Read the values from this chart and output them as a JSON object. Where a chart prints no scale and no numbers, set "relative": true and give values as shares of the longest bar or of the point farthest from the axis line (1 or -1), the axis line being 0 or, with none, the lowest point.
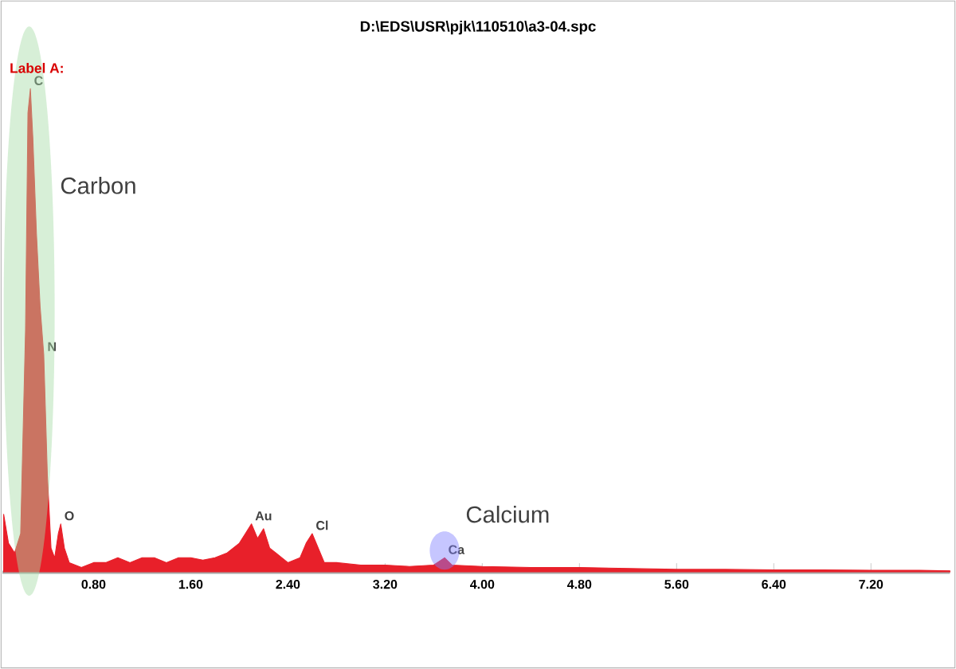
{
  "chart_data": {
    "type": "area",
    "title": "D:\\EDS\\USR\\pjk\\110510\\a3-04.spc",
    "relative": true,
    "xlim": [
      0.05,
      7.85
    ],
    "xticks": [
      {
        "value": 0.8,
        "label": "0.80"
      },
      {
        "value": 1.6,
        "label": "1.60"
      },
      {
        "value": 2.4,
        "label": "2.40"
      },
      {
        "value": 3.2,
        "label": "3.20"
      },
      {
        "value": 4.0,
        "label": "4.00"
      },
      {
        "value": 4.8,
        "label": "4.80"
      },
      {
        "value": 5.6,
        "label": "5.60"
      },
      {
        "value": 6.4,
        "label": "6.40"
      },
      {
        "value": 7.2,
        "label": "7.20"
      }
    ],
    "series": [
      {
        "color": "#e8202a",
        "x": [
          0.06,
          0.1,
          0.15,
          0.2,
          0.24,
          0.26,
          0.28,
          0.3,
          0.33,
          0.36,
          0.39,
          0.42,
          0.45,
          0.48,
          0.51,
          0.53,
          0.56,
          0.6,
          0.7,
          0.8,
          0.9,
          1.0,
          1.1,
          1.2,
          1.3,
          1.4,
          1.5,
          1.6,
          1.7,
          1.8,
          1.9,
          2.0,
          2.05,
          2.1,
          2.15,
          2.2,
          2.25,
          2.3,
          2.4,
          2.5,
          2.55,
          2.6,
          2.65,
          2.7,
          2.8,
          3.0,
          3.2,
          3.4,
          3.6,
          3.69,
          3.75,
          4.0,
          4.4,
          4.8,
          5.2,
          5.6,
          6.0,
          6.4,
          6.8,
          7.2,
          7.6,
          7.85
        ],
        "values": [
          0.12,
          0.06,
          0.04,
          0.08,
          0.5,
          0.95,
          1.0,
          0.9,
          0.7,
          0.55,
          0.45,
          0.2,
          0.05,
          0.03,
          0.08,
          0.1,
          0.05,
          0.02,
          0.01,
          0.02,
          0.02,
          0.03,
          0.02,
          0.03,
          0.03,
          0.02,
          0.03,
          0.03,
          0.025,
          0.03,
          0.04,
          0.06,
          0.08,
          0.1,
          0.07,
          0.09,
          0.05,
          0.04,
          0.02,
          0.03,
          0.06,
          0.08,
          0.05,
          0.02,
          0.02,
          0.015,
          0.015,
          0.012,
          0.015,
          0.03,
          0.015,
          0.012,
          0.01,
          0.01,
          0.008,
          0.006,
          0.006,
          0.005,
          0.005,
          0.004,
          0.004,
          0.003
        ]
      }
    ],
    "annotations": [
      "Label A:",
      {
        "text": "C",
        "x": 0.28,
        "y": 1.0
      },
      {
        "text": "N",
        "x": 0.39,
        "y": 0.45
      },
      {
        "text": "O",
        "x": 0.53,
        "y": 0.1
      },
      {
        "text": "Au",
        "x": 2.1,
        "y": 0.1
      },
      {
        "text": "Cl",
        "x": 2.6,
        "y": 0.08
      },
      {
        "text": "Ca",
        "x": 3.69,
        "y": 0.03
      },
      "Carbon",
      "Calcium"
    ]
  }
}
